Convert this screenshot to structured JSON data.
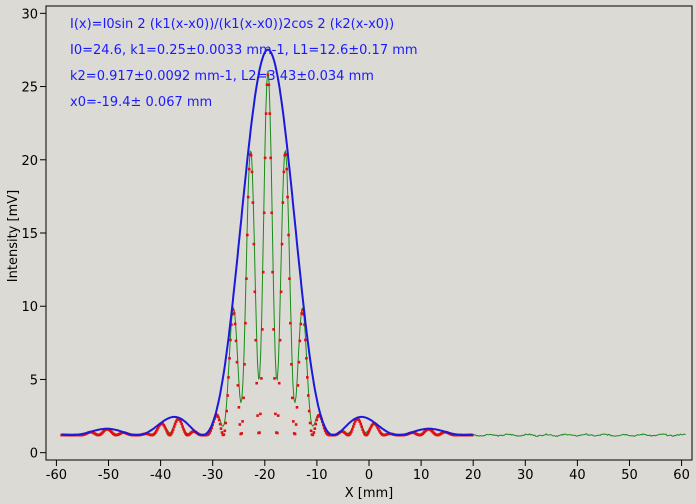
{
  "chart_data": {
    "type": "line",
    "xlabel": "X [mm]",
    "ylabel": "Intensity [mV]",
    "xlim": [
      -62,
      62
    ],
    "ylim": [
      -0.5,
      30.5
    ],
    "x_ticks": [
      -60,
      -50,
      -40,
      -30,
      -20,
      -10,
      0,
      10,
      20,
      30,
      40,
      50,
      60
    ],
    "y_ticks": [
      0,
      5,
      10,
      15,
      20,
      25,
      30
    ],
    "grid": false,
    "annotation_lines": [
      "I(x)=I0sin 2 (k1(x-x0))/(k1(x-x0))2cos 2 (k2(x-x0))",
      "I0=24.6,  k1=0.25±0.0033 mm-1,   L1=12.6±0.17 mm",
      "k2=0.917±0.0092 mm-1,   L2=3.43±0.034 mm",
      "x0=-19.4±   0.067 mm"
    ],
    "model": {
      "I0": 24.6,
      "k1": 0.25,
      "k2": 0.917,
      "x0": -19.4,
      "baseline": 1.2,
      "envelope_scale": 1.07
    },
    "series": [
      {
        "role": "envelope",
        "color": "#1a1adc",
        "x_range": [
          -59,
          20
        ]
      },
      {
        "role": "fit",
        "color": "#e01010",
        "x_range": [
          -59,
          20
        ]
      },
      {
        "role": "data",
        "color": "#1a8a1a",
        "x_range": [
          -59,
          61
        ]
      }
    ]
  }
}
